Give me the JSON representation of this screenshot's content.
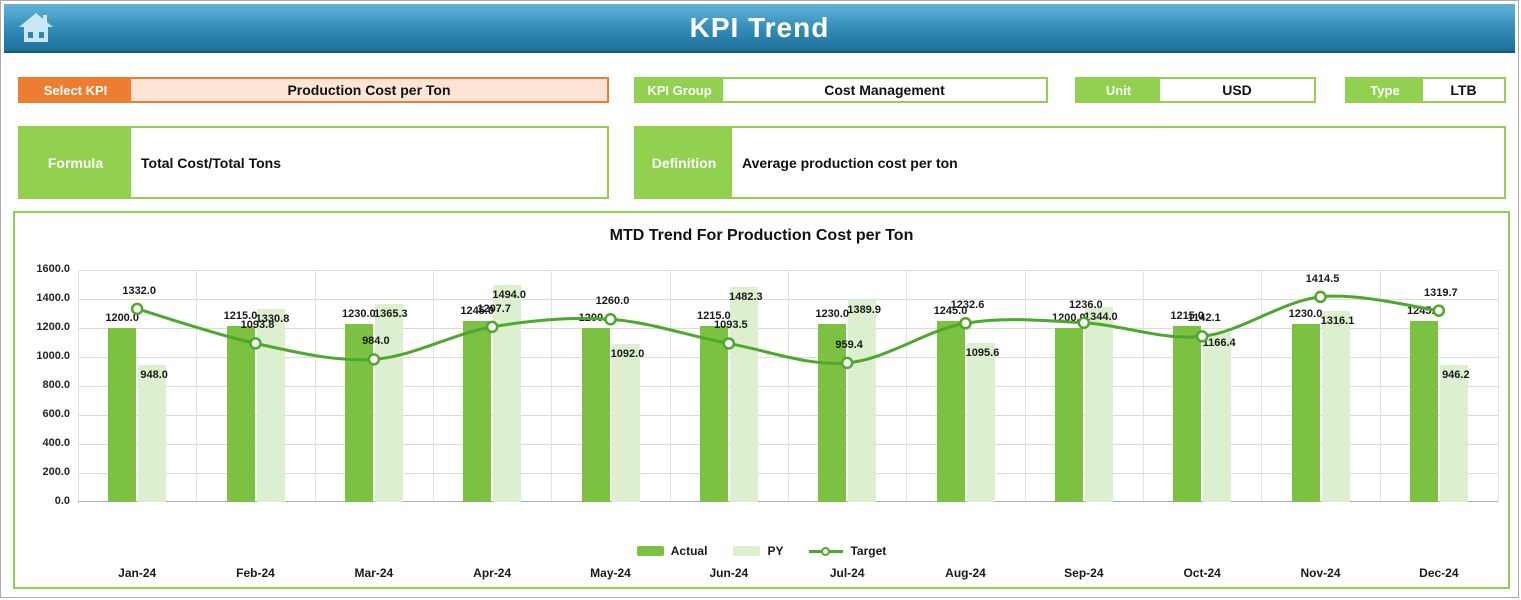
{
  "header": {
    "title": "KPI Trend"
  },
  "fields": {
    "select_kpi": {
      "label": "Select KPI",
      "value": "Production Cost per Ton"
    },
    "kpi_group": {
      "label": "KPI Group",
      "value": "Cost Management"
    },
    "unit": {
      "label": "Unit",
      "value": "USD"
    },
    "type": {
      "label": "Type",
      "value": "LTB"
    },
    "formula": {
      "label": "Formula",
      "value": "Total Cost/Total Tons"
    },
    "definition": {
      "label": "Definition",
      "value": "Average production cost per ton"
    }
  },
  "colors": {
    "header_blue_top": "#63B4D8",
    "header_blue_bottom": "#1C6F99",
    "accent_orange": "#ED7D31",
    "orange_value_bg": "#FCE4D6",
    "accent_green": "#92D050",
    "actual_bar_green": "#7DC142",
    "py_bar_green": "#DCEFCE",
    "target_line_green": "#4EA72E",
    "gridline_gray": "#DBDBDB"
  },
  "chart_data": {
    "type": "bar",
    "title": "MTD Trend For Production Cost per Ton",
    "categories": [
      "Jan-24",
      "Feb-24",
      "Mar-24",
      "Apr-24",
      "May-24",
      "Jun-24",
      "Jul-24",
      "Aug-24",
      "Sep-24",
      "Oct-24",
      "Nov-24",
      "Dec-24"
    ],
    "series": [
      {
        "name": "Actual",
        "type": "bar",
        "color": "#7DC142",
        "values": [
          1200.0,
          1215.0,
          1230.0,
          1245.0,
          1200.0,
          1215.0,
          1230.0,
          1245.0,
          1200.0,
          1215.0,
          1230.0,
          1245.0
        ]
      },
      {
        "name": "PY",
        "type": "bar",
        "color": "#DCEFCE",
        "values": [
          948.0,
          1330.8,
          1365.3,
          1494.0,
          1092.0,
          1482.3,
          1389.9,
          1095.6,
          1344.0,
          1166.4,
          1316.1,
          946.2
        ]
      },
      {
        "name": "Target",
        "type": "line",
        "color": "#4EA72E",
        "values": [
          1332.0,
          1093.8,
          984.0,
          1207.7,
          1260.0,
          1093.5,
          959.4,
          1232.6,
          1236.0,
          1142.1,
          1414.5,
          1319.7
        ]
      }
    ],
    "xlabel": "",
    "ylabel": "",
    "ylim": [
      0,
      1600
    ],
    "ytick_step": 200,
    "ytick_format_decimals": 1,
    "grid": true,
    "legend_position": "bottom"
  }
}
